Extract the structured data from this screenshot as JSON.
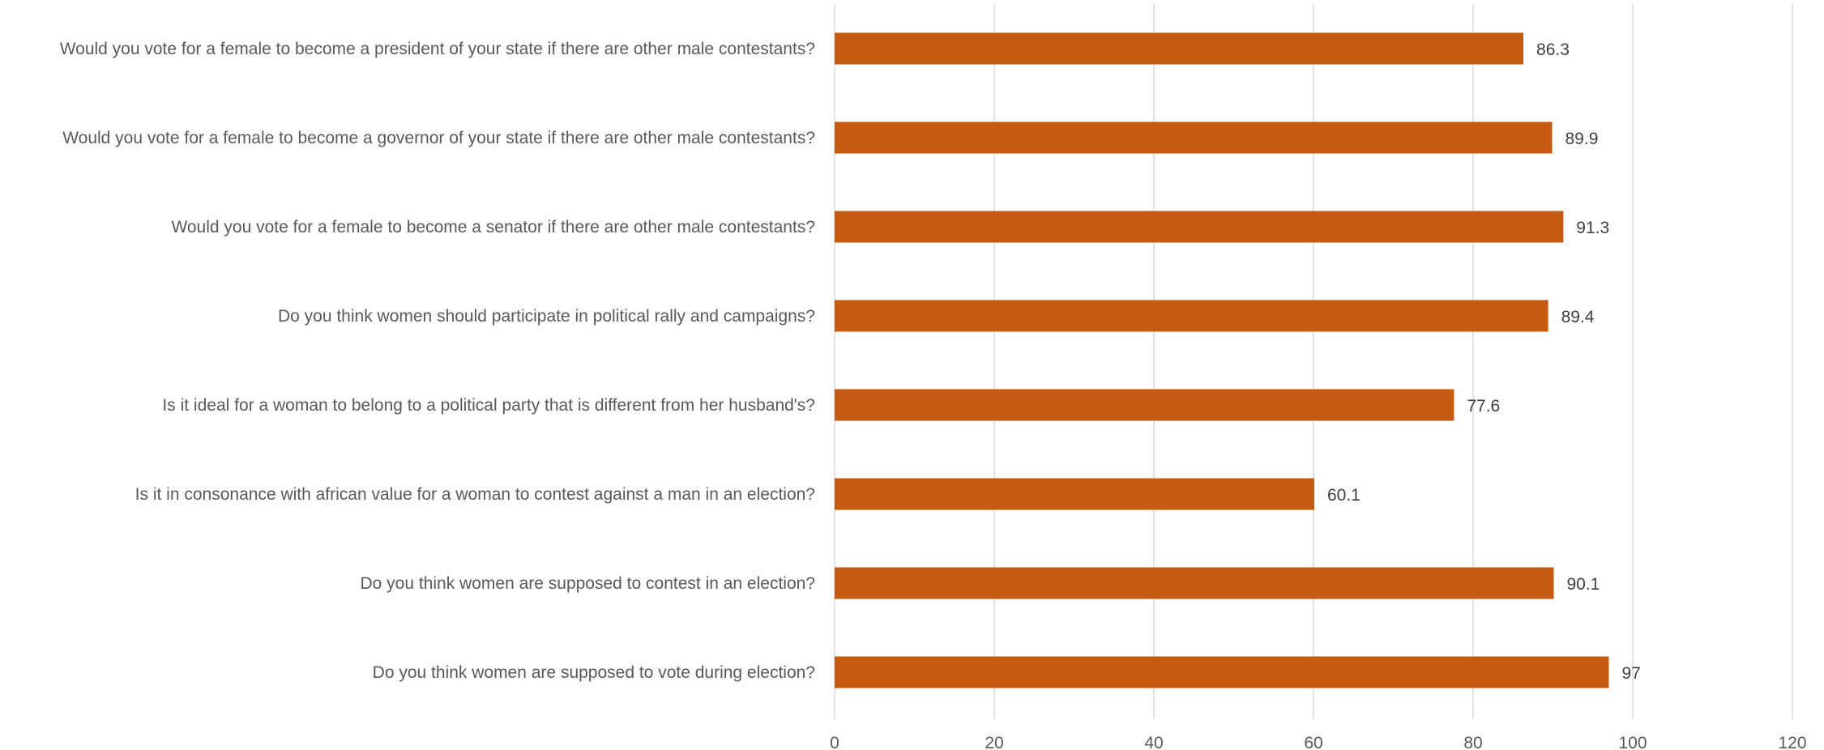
{
  "chart_data": {
    "type": "bar",
    "orientation": "horizontal",
    "title": "",
    "xlabel": "",
    "ylabel": "",
    "xlim": [
      0,
      120
    ],
    "x_ticks": [
      0,
      20,
      40,
      60,
      80,
      100,
      120
    ],
    "grid": true,
    "legend": "none",
    "bar_color": "#C55A11",
    "categories": [
      "Would you vote for a female to become a president of your state if there are other male contestants?",
      "Would you vote for a female to become a governor of your state if there are other male contestants?",
      "Would you vote for a female to become a senator if there are other male contestants?",
      "Do you think women should participate in political rally and campaigns?",
      "Is it ideal for a woman to belong to a political party that is different from her husband's?",
      "Is it in consonance with african value for a woman to contest against a man in an election?",
      "Do you think women are supposed to contest in an election?",
      "Do you think women are supposed to vote during election?"
    ],
    "values": [
      86.3,
      89.9,
      91.3,
      89.4,
      77.6,
      60.1,
      90.1,
      97
    ]
  }
}
